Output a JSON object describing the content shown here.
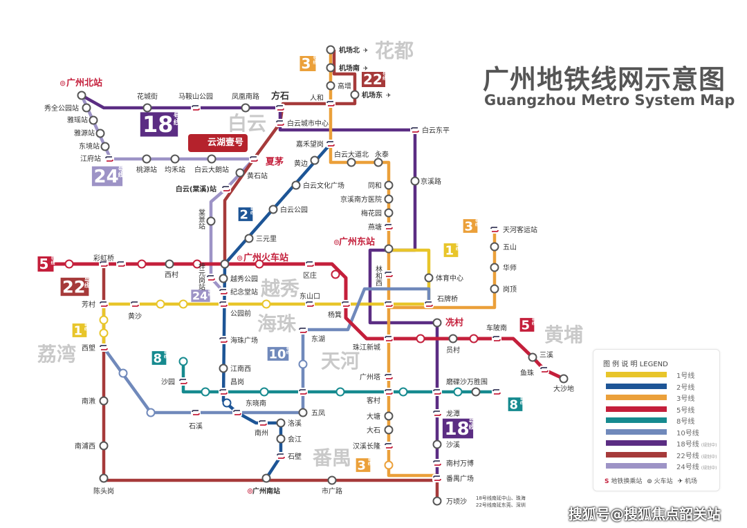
{
  "header": {
    "title": "广州地铁线网示意图",
    "subtitle": "Guangzhou Metro System Map"
  },
  "promo": {
    "label": "云湖壹号"
  },
  "watermark": "搜狐号@搜狐焦点韶关站",
  "note": [
    "18号线南延中山、珠海",
    "22号线南延东莞、深圳"
  ],
  "districts": [
    {
      "id": "huadu",
      "name": "花都"
    },
    {
      "id": "baiyun",
      "name": "白云"
    },
    {
      "id": "yuexiu",
      "name": "越秀"
    },
    {
      "id": "haizhu",
      "name": "海珠"
    },
    {
      "id": "tianhe",
      "name": "天河"
    },
    {
      "id": "liwan",
      "name": "荔湾"
    },
    {
      "id": "panyu",
      "name": "番禺"
    },
    {
      "id": "huangpu",
      "name": "黄埔"
    }
  ],
  "lines": [
    {
      "id": "1",
      "number": "1",
      "legend": "1号线",
      "color": "#e8c52a"
    },
    {
      "id": "2",
      "number": "2",
      "legend": "2号线",
      "color": "#1d5596"
    },
    {
      "id": "3",
      "number": "3",
      "legend": "3号线",
      "color": "#eba03a"
    },
    {
      "id": "5",
      "number": "5",
      "legend": "5号线",
      "color": "#c41f3b"
    },
    {
      "id": "8",
      "number": "8",
      "legend": "8号线",
      "color": "#168a8f"
    },
    {
      "id": "10",
      "number": "10",
      "legend": "10号线",
      "color": "#7089bb"
    },
    {
      "id": "18",
      "number": "18",
      "legend": "18号线",
      "color": "#5b2d83",
      "note": "(规划中)"
    },
    {
      "id": "22",
      "number": "22",
      "legend": "22号线",
      "color": "#a63a3a",
      "note": "(规划中)"
    },
    {
      "id": "24",
      "number": "24",
      "legend": "24号线",
      "color": "#9d93c6",
      "note": "(规划中)"
    }
  ],
  "badge_suffix": "号线",
  "legend": {
    "title": "图 例 说 明  LEGEND",
    "transfer": "地铁换乘站",
    "railway": "火车站",
    "airport": "机场"
  },
  "stations": [
    {
      "id": "gzbz",
      "name": "广州北站",
      "type": "railway"
    },
    {
      "id": "huacheng",
      "name": "花城街",
      "type": "normal"
    },
    {
      "id": "maanshan",
      "name": "马鞍山公园",
      "type": "transfer"
    },
    {
      "id": "fenghuang",
      "name": "凤凰南路",
      "type": "normal"
    },
    {
      "id": "fangshi",
      "name": "方石",
      "type": "transfer"
    },
    {
      "id": "xiuquan",
      "name": "秀全公园站",
      "type": "normal"
    },
    {
      "id": "yayao",
      "name": "雅瑶站",
      "type": "normal"
    },
    {
      "id": "yayuan",
      "name": "雅源站",
      "type": "normal"
    },
    {
      "id": "dongjing",
      "name": "东境站",
      "type": "normal"
    },
    {
      "id": "jiangfu",
      "name": "江府站",
      "type": "transfer"
    },
    {
      "id": "taoyuan",
      "name": "桃源站",
      "type": "normal"
    },
    {
      "id": "junhe",
      "name": "均禾站",
      "type": "normal"
    },
    {
      "id": "dalang",
      "name": "白云大朗站",
      "type": "normal"
    },
    {
      "id": "xiamao",
      "name": "夏茅",
      "type": "transfer"
    },
    {
      "id": "huangshi",
      "name": "黄石站",
      "type": "normal"
    },
    {
      "id": "tangxi",
      "name": "白云(棠溪)站",
      "type": "transfer"
    },
    {
      "id": "tangjing",
      "name": "棠景站",
      "type": "normal"
    },
    {
      "id": "ziyuangang",
      "name": "梓元岗站",
      "type": "transfer"
    },
    {
      "id": "bycszx",
      "name": "白云城市中心",
      "type": "transfer"
    },
    {
      "id": "renhe",
      "name": "人和",
      "type": "transfer"
    },
    {
      "id": "jcbei",
      "name": "机场北",
      "type": "airport"
    },
    {
      "id": "jcnan",
      "name": "机场南",
      "type": "airport"
    },
    {
      "id": "gaozeng",
      "name": "高增",
      "type": "normal"
    },
    {
      "id": "jcdong",
      "name": "机场东",
      "type": "airport"
    },
    {
      "id": "jiahe",
      "name": "嘉禾望岗",
      "type": "transfer"
    },
    {
      "id": "bydb",
      "name": "白云大道北",
      "type": "normal"
    },
    {
      "id": "yongtai",
      "name": "永泰",
      "type": "normal"
    },
    {
      "id": "dongping",
      "name": "白云东平",
      "type": "transfer"
    },
    {
      "id": "jingxilu",
      "name": "京溪路",
      "type": "normal"
    },
    {
      "id": "tonghe",
      "name": "同和",
      "type": "normal"
    },
    {
      "id": "jingxinanfang",
      "name": "京溪南方医院",
      "type": "normal"
    },
    {
      "id": "meihuayuan",
      "name": "梅花园",
      "type": "normal"
    },
    {
      "id": "yantang",
      "name": "燕塘",
      "type": "transfer"
    },
    {
      "id": "gzdz",
      "name": "广州东站",
      "type": "railway"
    },
    {
      "id": "linhexi",
      "name": "林和西",
      "type": "transfer"
    },
    {
      "id": "zhujiang",
      "name": "珠江新城",
      "type": "transfer"
    },
    {
      "id": "guangzhouta",
      "name": "广州塔",
      "type": "transfer"
    },
    {
      "id": "kecun",
      "name": "客村",
      "type": "transfer"
    },
    {
      "id": "datang",
      "name": "大塘",
      "type": "normal"
    },
    {
      "id": "dashi",
      "name": "大石",
      "type": "normal"
    },
    {
      "id": "hanxi",
      "name": "汉溪长隆",
      "type": "transfer"
    },
    {
      "id": "tiyuzhongxin",
      "name": "体育中心",
      "type": "normal"
    },
    {
      "id": "shipaiqiao",
      "name": "石牌桥",
      "type": "transfer"
    },
    {
      "id": "tianhekeyun",
      "name": "天河客运站",
      "type": "transfer"
    },
    {
      "id": "wushan",
      "name": "五山",
      "type": "normal"
    },
    {
      "id": "huashi",
      "name": "华师",
      "type": "normal"
    },
    {
      "id": "gangding",
      "name": "岗顶",
      "type": "normal"
    },
    {
      "id": "xiancun",
      "name": "冼村",
      "type": "normal"
    },
    {
      "id": "yuancun",
      "name": "员村",
      "type": "normal"
    },
    {
      "id": "chebeinan",
      "name": "车陂南",
      "type": "transfer"
    },
    {
      "id": "sanxi",
      "name": "三溪",
      "type": "normal"
    },
    {
      "id": "yuzhu",
      "name": "鱼珠",
      "type": "transfer"
    },
    {
      "id": "dashadi",
      "name": "大沙地",
      "type": "normal"
    },
    {
      "id": "modiesha",
      "name": "磨碟沙",
      "type": "transfer"
    },
    {
      "id": "wanshengwei",
      "name": "万胜围",
      "type": "normal"
    },
    {
      "id": "longtan",
      "name": "龙潭",
      "type": "transfer"
    },
    {
      "id": "shaxi",
      "name": "沙溪",
      "type": "normal"
    },
    {
      "id": "nancun",
      "name": "南村万博",
      "type": "transfer"
    },
    {
      "id": "panyuguangchang",
      "name": "番禺广场",
      "type": "transfer"
    },
    {
      "id": "wanqingsha",
      "name": "万顷沙",
      "type": "normal"
    },
    {
      "id": "shiguanglu",
      "name": "市广路",
      "type": "normal"
    },
    {
      "id": "gznz",
      "name": "广州南站",
      "type": "railway"
    },
    {
      "id": "chentougang",
      "name": "陈头岗",
      "type": "normal"
    },
    {
      "id": "nanpuxi",
      "name": "南浦西",
      "type": "normal"
    },
    {
      "id": "nanjiao",
      "name": "南漖",
      "type": "normal"
    },
    {
      "id": "xilang",
      "name": "西塱",
      "type": "transfer"
    },
    {
      "id": "fangcun",
      "name": "芳村",
      "type": "transfer"
    },
    {
      "id": "huangsha",
      "name": "黄沙",
      "type": "transfer"
    },
    {
      "id": "caihongqiao",
      "name": "彩虹桥",
      "type": "transfer"
    },
    {
      "id": "xicun",
      "name": "西村",
      "type": "normal"
    },
    {
      "id": "gzhcz",
      "name": "广州火车站",
      "type": "railway"
    },
    {
      "id": "yuexiugongyuan",
      "name": "越秀公园",
      "type": "normal"
    },
    {
      "id": "jiniantang",
      "name": "纪念堂站",
      "type": "transfer"
    },
    {
      "id": "gongyuanqian",
      "name": "公园前",
      "type": "transfer"
    },
    {
      "id": "haizhuguangchang",
      "name": "海珠广场",
      "type": "transfer"
    },
    {
      "id": "jiangnanxi",
      "name": "江南西",
      "type": "normal"
    },
    {
      "id": "changgang",
      "name": "昌岗",
      "type": "transfer"
    },
    {
      "id": "dongxiaonan",
      "name": "东晓南",
      "type": "transfer"
    },
    {
      "id": "nanzhou",
      "name": "南州",
      "type": "transfer"
    },
    {
      "id": "luoxi",
      "name": "洛溪",
      "type": "normal"
    },
    {
      "id": "huijiang",
      "name": "会江",
      "type": "normal"
    },
    {
      "id": "shibi",
      "name": "石壁",
      "type": "transfer"
    },
    {
      "id": "huangbian",
      "name": "黄边",
      "type": "normal"
    },
    {
      "id": "bywhgc",
      "name": "白云文化广场",
      "type": "normal"
    },
    {
      "id": "baiyungongyuan",
      "name": "白云公园",
      "type": "normal"
    },
    {
      "id": "sanyuanli",
      "name": "三元里",
      "type": "normal"
    },
    {
      "id": "quzhuang",
      "name": "区庄",
      "type": "transfer"
    },
    {
      "id": "dongshankou",
      "name": "东山口",
      "type": "transfer"
    },
    {
      "id": "yangji",
      "name": "杨箕",
      "type": "transfer"
    },
    {
      "id": "donghu",
      "name": "东湖",
      "type": "transfer"
    },
    {
      "id": "wufeng",
      "name": "五凤",
      "type": "normal"
    },
    {
      "id": "shixi",
      "name": "石溪",
      "type": "transfer"
    },
    {
      "id": "shayuan",
      "name": "沙园",
      "type": "transfer"
    }
  ]
}
